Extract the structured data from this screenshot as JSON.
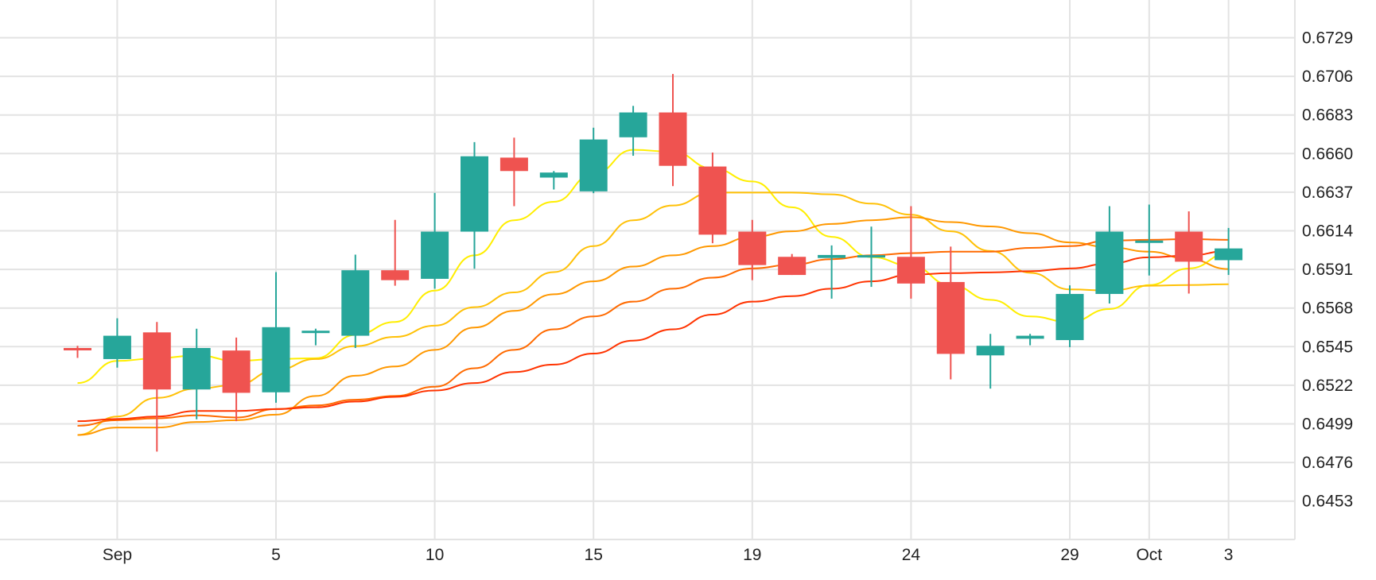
{
  "chart_data": {
    "type": "candlestick",
    "title": "",
    "ylim": [
      0.643,
      0.6752
    ],
    "y_ticks": [
      "0.6729",
      "0.6706",
      "0.6683",
      "0.6660",
      "0.6637",
      "0.6614",
      "0.6591",
      "0.6568",
      "0.6545",
      "0.6522",
      "0.6499",
      "0.6476",
      "0.6453"
    ],
    "x_ticks": [
      {
        "label": "Sep",
        "index": 1
      },
      {
        "label": "5",
        "index": 5
      },
      {
        "label": "10",
        "index": 9
      },
      {
        "label": "15",
        "index": 13
      },
      {
        "label": "19",
        "index": 17
      },
      {
        "label": "24",
        "index": 21
      },
      {
        "label": "29",
        "index": 25
      },
      {
        "label": "Oct",
        "index": 27
      },
      {
        "label": "3",
        "index": 29
      }
    ],
    "grid": true,
    "colors": {
      "up": "#26a69a",
      "down": "#ef5350",
      "grid": "#e3e3e3"
    },
    "ohlc": [
      [
        0.65442,
        0.65455,
        0.65383,
        0.6544
      ],
      [
        0.65376,
        0.65619,
        0.65325,
        0.65515
      ],
      [
        0.65535,
        0.65597,
        0.64825,
        0.65195
      ],
      [
        0.65195,
        0.65557,
        0.65017,
        0.65442
      ],
      [
        0.65427,
        0.65504,
        0.65006,
        0.65175
      ],
      [
        0.65178,
        0.65894,
        0.65116,
        0.65566
      ],
      [
        0.6554,
        0.65557,
        0.65458,
        0.65545
      ],
      [
        0.65515,
        0.65998,
        0.65442,
        0.65905
      ],
      [
        0.65905,
        0.66205,
        0.65813,
        0.65846
      ],
      [
        0.65854,
        0.66366,
        0.65795,
        0.66135
      ],
      [
        0.66135,
        0.66668,
        0.65914,
        0.66584
      ],
      [
        0.66576,
        0.66695,
        0.66287,
        0.66496
      ],
      [
        0.66457,
        0.66496,
        0.66386,
        0.66487
      ],
      [
        0.66375,
        0.66754,
        0.66364,
        0.66684
      ],
      [
        0.66697,
        0.66884,
        0.66587,
        0.66845
      ],
      [
        0.66845,
        0.67074,
        0.66406,
        0.66527
      ],
      [
        0.66523,
        0.66606,
        0.66066,
        0.66117
      ],
      [
        0.66135,
        0.66205,
        0.65846,
        0.65936
      ],
      [
        0.65985,
        0.66002,
        0.65877,
        0.65877
      ],
      [
        0.65978,
        0.66053,
        0.65736,
        0.65996
      ],
      [
        0.6599,
        0.66165,
        0.65806,
        0.65995
      ],
      [
        0.65985,
        0.66287,
        0.65736,
        0.65826
      ],
      [
        0.65835,
        0.66046,
        0.65255,
        0.65407
      ],
      [
        0.65398,
        0.65526,
        0.652,
        0.65455
      ],
      [
        0.65497,
        0.65526,
        0.65458,
        0.65515
      ],
      [
        0.65489,
        0.65815,
        0.65447,
        0.65764
      ],
      [
        0.65764,
        0.66287,
        0.65707,
        0.66135
      ],
      [
        0.66076,
        0.66296,
        0.65874,
        0.66082
      ],
      [
        0.66135,
        0.66256,
        0.65766,
        0.65956
      ],
      [
        0.65965,
        0.66157,
        0.65877,
        0.66035
      ]
    ],
    "series": [
      {
        "name": "ma-yellow",
        "color": "#ffee00",
        "values": [
          0.65233,
          0.65365,
          0.65381,
          0.65398,
          0.65365,
          0.65376,
          0.65381,
          0.6552,
          0.65597,
          0.65784,
          0.65994,
          0.66203,
          0.66313,
          0.66479,
          0.66622,
          0.66611,
          0.66512,
          0.66434,
          0.6628,
          0.66104,
          0.65983,
          0.65932,
          0.65817,
          0.65729,
          0.6563,
          0.65597,
          0.65674,
          0.65817,
          0.65916,
          0.66005
        ]
      },
      {
        "name": "ma-gold",
        "color": "#ffc107",
        "values": [
          0.64924,
          0.65034,
          0.65145,
          0.652,
          0.65222,
          0.6531,
          0.65376,
          0.65453,
          0.65508,
          0.65575,
          0.65685,
          0.65773,
          0.65894,
          0.66049,
          0.66203,
          0.66291,
          0.66368,
          0.66368,
          0.66368,
          0.66357,
          0.66302,
          0.66236,
          0.66137,
          0.6602,
          0.6589,
          0.65791,
          0.65784,
          0.65813,
          0.65817,
          0.65822
        ]
      },
      {
        "name": "ma-orange",
        "color": "#ff9800",
        "values": [
          0.64924,
          0.64968,
          0.64968,
          0.65001,
          0.65012,
          0.65045,
          0.65156,
          0.65277,
          0.65332,
          0.65431,
          0.65564,
          0.65663,
          0.65762,
          0.65839,
          0.65927,
          0.65994,
          0.66049,
          0.66104,
          0.66137,
          0.66181,
          0.66203,
          0.66221,
          0.66192,
          0.66166,
          0.66126,
          0.66071,
          0.66042,
          0.66016,
          0.65971,
          0.65912
        ]
      },
      {
        "name": "ma-dark-orange",
        "color": "#ff6a00",
        "values": [
          0.64979,
          0.65012,
          0.65023,
          0.65041,
          0.65028,
          0.65078,
          0.651,
          0.65134,
          0.65156,
          0.65211,
          0.65321,
          0.65431,
          0.65553,
          0.6563,
          0.65718,
          0.65795,
          0.65861,
          0.65916,
          0.65938,
          0.65971,
          0.65994,
          0.66007,
          0.66016,
          0.66016,
          0.66038,
          0.66049,
          0.66082,
          0.66086,
          0.66091,
          0.66086
        ]
      },
      {
        "name": "ma-red",
        "color": "#ff3300",
        "values": [
          0.65006,
          0.65019,
          0.65034,
          0.65067,
          0.65067,
          0.65078,
          0.65089,
          0.65123,
          0.65151,
          0.65189,
          0.65233,
          0.65299,
          0.65343,
          0.65409,
          0.65486,
          0.65553,
          0.65641,
          0.65718,
          0.65751,
          0.65795,
          0.65839,
          0.65879,
          0.65888,
          0.65892,
          0.65899,
          0.65916,
          0.65945,
          0.65982,
          0.65993,
          0.6602
        ]
      }
    ]
  }
}
